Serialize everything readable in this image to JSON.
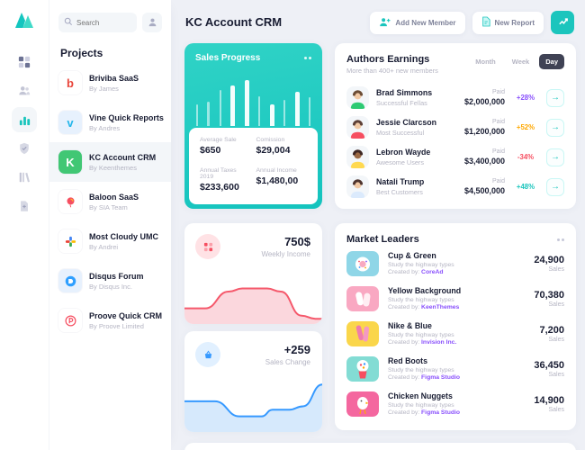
{
  "header": {
    "title": "KC Account CRM",
    "buttons": {
      "add_member": "Add New Member",
      "new_report": "New Report"
    }
  },
  "rail": {
    "icons": [
      {
        "icon": "grid",
        "name": "dashboard",
        "active": false
      },
      {
        "icon": "users",
        "name": "users",
        "active": false
      },
      {
        "icon": "chart-bars",
        "name": "analytics",
        "active": true
      },
      {
        "icon": "shield-check",
        "name": "security",
        "active": false
      },
      {
        "icon": "library",
        "name": "library",
        "active": false
      },
      {
        "icon": "file-plus",
        "name": "new-file",
        "active": false
      }
    ]
  },
  "sidebar": {
    "search_placeholder": "Search",
    "heading": "Projects",
    "items": [
      {
        "name": "Briviba SaaS",
        "by": "By James",
        "icon": "briviba",
        "tile_bg": "#ffffff",
        "active": false
      },
      {
        "name": "Vine Quick Reports",
        "by": "By Andres",
        "icon": "vine",
        "tile_bg": "#e7f1fd",
        "active": false
      },
      {
        "name": "KC Account CRM",
        "by": "By Keenthemes",
        "icon": "kc",
        "tile_bg": "#41c774",
        "active": true
      },
      {
        "name": "Baloon SaaS",
        "by": "By SIA Team",
        "icon": "baloon",
        "tile_bg": "#ffffff",
        "active": false
      },
      {
        "name": "Most Cloudy UMC",
        "by": "By Andrei",
        "icon": "cloudy",
        "tile_bg": "#ffffff",
        "active": false
      },
      {
        "name": "Disqus Forum",
        "by": "By Disqus Inc.",
        "icon": "disqus",
        "tile_bg": "#e7f1fd",
        "active": false
      },
      {
        "name": "Proove Quick CRM",
        "by": "By Proove Limited",
        "icon": "proove",
        "tile_bg": "#ffffff",
        "active": false
      }
    ]
  },
  "sales_progress": {
    "title": "Sales Progress",
    "bars": {
      "values": [
        44,
        50,
        74,
        83,
        95,
        62,
        44,
        53,
        70,
        60
      ],
      "widths": [
        2,
        3,
        2,
        5,
        5,
        2,
        5,
        2,
        5,
        2
      ]
    },
    "stats": [
      {
        "label": "Average Sale",
        "value": "$650"
      },
      {
        "label": "Comission",
        "value": "$29,004"
      },
      {
        "label": "Annual Taxes 2019",
        "value": "$233,600"
      },
      {
        "label": "Annual Income",
        "value": "$1,480,00"
      }
    ]
  },
  "authors": {
    "title": "Authors Earnings",
    "subtitle": "More than 400+ new members",
    "tabs": [
      "Month",
      "Week",
      "Day"
    ],
    "active_tab": "Day",
    "rows": [
      {
        "name": "Brad Simmons",
        "role": "Successful Fellas",
        "paid_label": "Paid",
        "amount": "$2,000,000",
        "change": "+28%",
        "change_color": "#8950fc",
        "avatar": {
          "skin": "#f1c9a5",
          "hair": "#6b4c35",
          "shirt": "#2dca73"
        }
      },
      {
        "name": "Jessie Clarcson",
        "role": "Most Successful",
        "paid_label": "Paid",
        "amount": "$1,200,000",
        "change": "+52%",
        "change_color": "#ffa800",
        "avatar": {
          "skin": "#f1c9a5",
          "hair": "#5d4037",
          "shirt": "#f64e60"
        }
      },
      {
        "name": "Lebron Wayde",
        "role": "Awesome Users",
        "paid_label": "Paid",
        "amount": "$3,400,000",
        "change": "-34%",
        "change_color": "#f64e60",
        "avatar": {
          "skin": "#9c6a44",
          "hair": "#3e2723",
          "shirt": "#ffd950"
        }
      },
      {
        "name": "Natali Trump",
        "role": "Best Customers",
        "paid_label": "Paid",
        "amount": "$4,500,000",
        "change": "+48%",
        "change_color": "#1bc5bd",
        "avatar": {
          "skin": "#f1c9a5",
          "hair": "#4e342e",
          "shirt": "#dbeafc"
        }
      }
    ]
  },
  "weekly_income": {
    "value": "750$",
    "label": "Weekly Income",
    "points": [
      [
        0,
        30
      ],
      [
        15,
        30
      ],
      [
        32,
        62
      ],
      [
        42,
        68
      ],
      [
        60,
        68
      ],
      [
        70,
        62
      ],
      [
        85,
        16
      ],
      [
        95,
        10
      ],
      [
        100,
        10
      ]
    ],
    "line_color": "#f5586b",
    "fill_color": "#fbd7dd",
    "icon_bg": "#ffe2e5"
  },
  "sales_change": {
    "value": "+259",
    "label": "Sales Change",
    "points": [
      [
        0,
        55
      ],
      [
        22,
        55
      ],
      [
        40,
        28
      ],
      [
        56,
        28
      ],
      [
        64,
        40
      ],
      [
        76,
        40
      ],
      [
        86,
        46
      ],
      [
        100,
        85
      ]
    ],
    "line_color": "#3699ff",
    "fill_color": "#d6e9fc",
    "icon_bg": "#e1f0ff"
  },
  "market_leaders": {
    "title": "Market Leaders",
    "link_color": "#8950fc",
    "rows": [
      {
        "name": "Cup & Green",
        "desc": "Study the highway types",
        "created_prefix": "Created by:",
        "author": "CoreAd",
        "sales": "24,900",
        "sales_label": "Sales",
        "thumb": "donut",
        "thumb_bg": "#8fd6e7"
      },
      {
        "name": "Yellow Background",
        "desc": "Study the highway types",
        "created_prefix": "Created by:",
        "author": "KeenThemes",
        "sales": "70,380",
        "sales_label": "Sales",
        "thumb": "slippers",
        "thumb_bg": "#f9a8c2"
      },
      {
        "name": "Nike & Blue",
        "desc": "Study the highway types",
        "created_prefix": "Created by:",
        "author": "Invision Inc.",
        "sales": "7,200",
        "sales_label": "Sales",
        "thumb": "shoes",
        "thumb_bg": "#fad64b"
      },
      {
        "name": "Red Boots",
        "desc": "Study the highway types",
        "created_prefix": "Created by:",
        "author": "Figma Studio",
        "sales": "36,450",
        "sales_label": "Sales",
        "thumb": "gumball",
        "thumb_bg": "#83dcd4"
      },
      {
        "name": "Chicken Nuggets",
        "desc": "Study the highway types",
        "created_prefix": "Created by:",
        "author": "Figma Studio",
        "sales": "14,900",
        "sales_label": "Sales",
        "thumb": "chicken",
        "thumb_bg": "#f4679f"
      }
    ]
  },
  "colors": {
    "accent_teal": "#1bc5bd",
    "purple": "#8950fc",
    "orange": "#ffa800",
    "red": "#f64e60",
    "blue": "#3699ff",
    "text_dark": "#181c32",
    "text_muted": "#b5b5c3"
  }
}
